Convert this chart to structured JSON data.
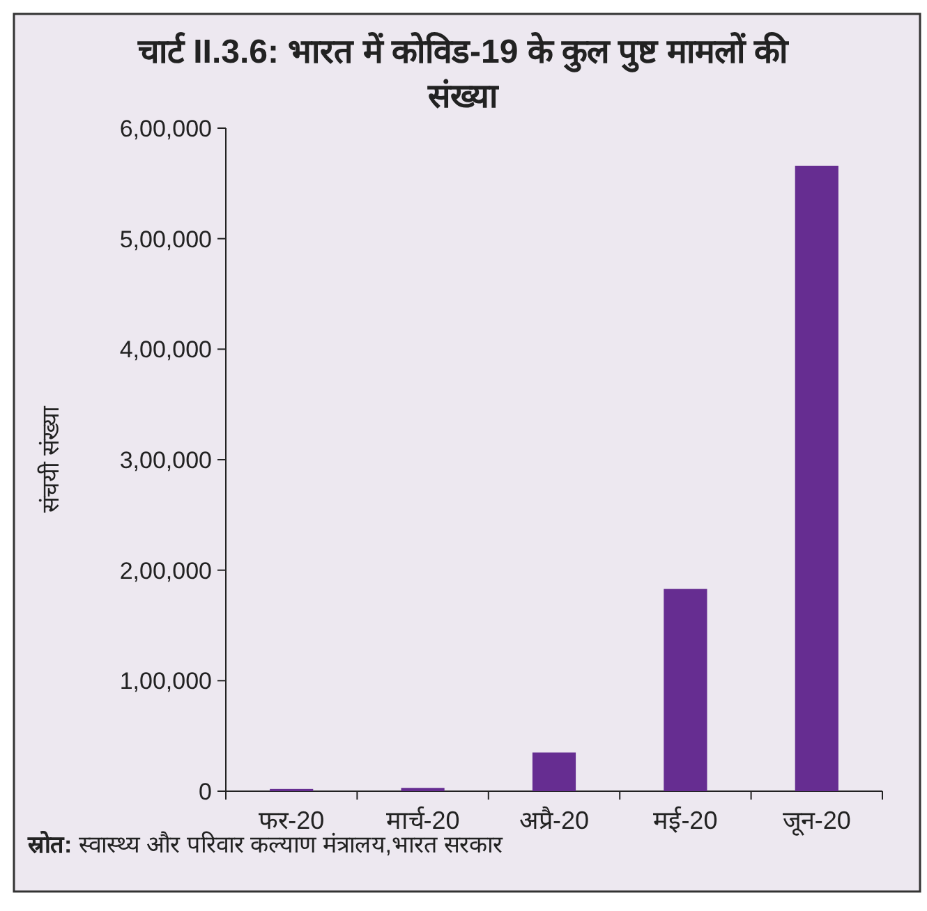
{
  "chart_data": {
    "type": "bar",
    "title": "चार्ट II.3.6: भारत में कोविड-19 के कुल पुष्ट मामलों की संख्या",
    "ylabel": "संचयी संख्या",
    "categories": [
      "फर-20",
      "मार्च-20",
      "अप्रै-20",
      "मई-20",
      "जून-20"
    ],
    "values": [
      2000,
      3000,
      35000,
      183000,
      566000
    ],
    "color": "#662d91",
    "ylim": [
      0,
      600000
    ],
    "yticks": [
      {
        "value": 0,
        "label": "0"
      },
      {
        "value": 100000,
        "label": "1,00,000"
      },
      {
        "value": 200000,
        "label": "2,00,000"
      },
      {
        "value": 300000,
        "label": "3,00,000"
      },
      {
        "value": 400000,
        "label": "4,00,000"
      },
      {
        "value": 500000,
        "label": "5,00,000"
      },
      {
        "value": 600000,
        "label": "6,00,000"
      }
    ],
    "grid": false,
    "annotations": [
      "स्रोत: स्वास्थ्य और परिवार कल्याण मंत्रालय,भारत सरकार"
    ]
  }
}
